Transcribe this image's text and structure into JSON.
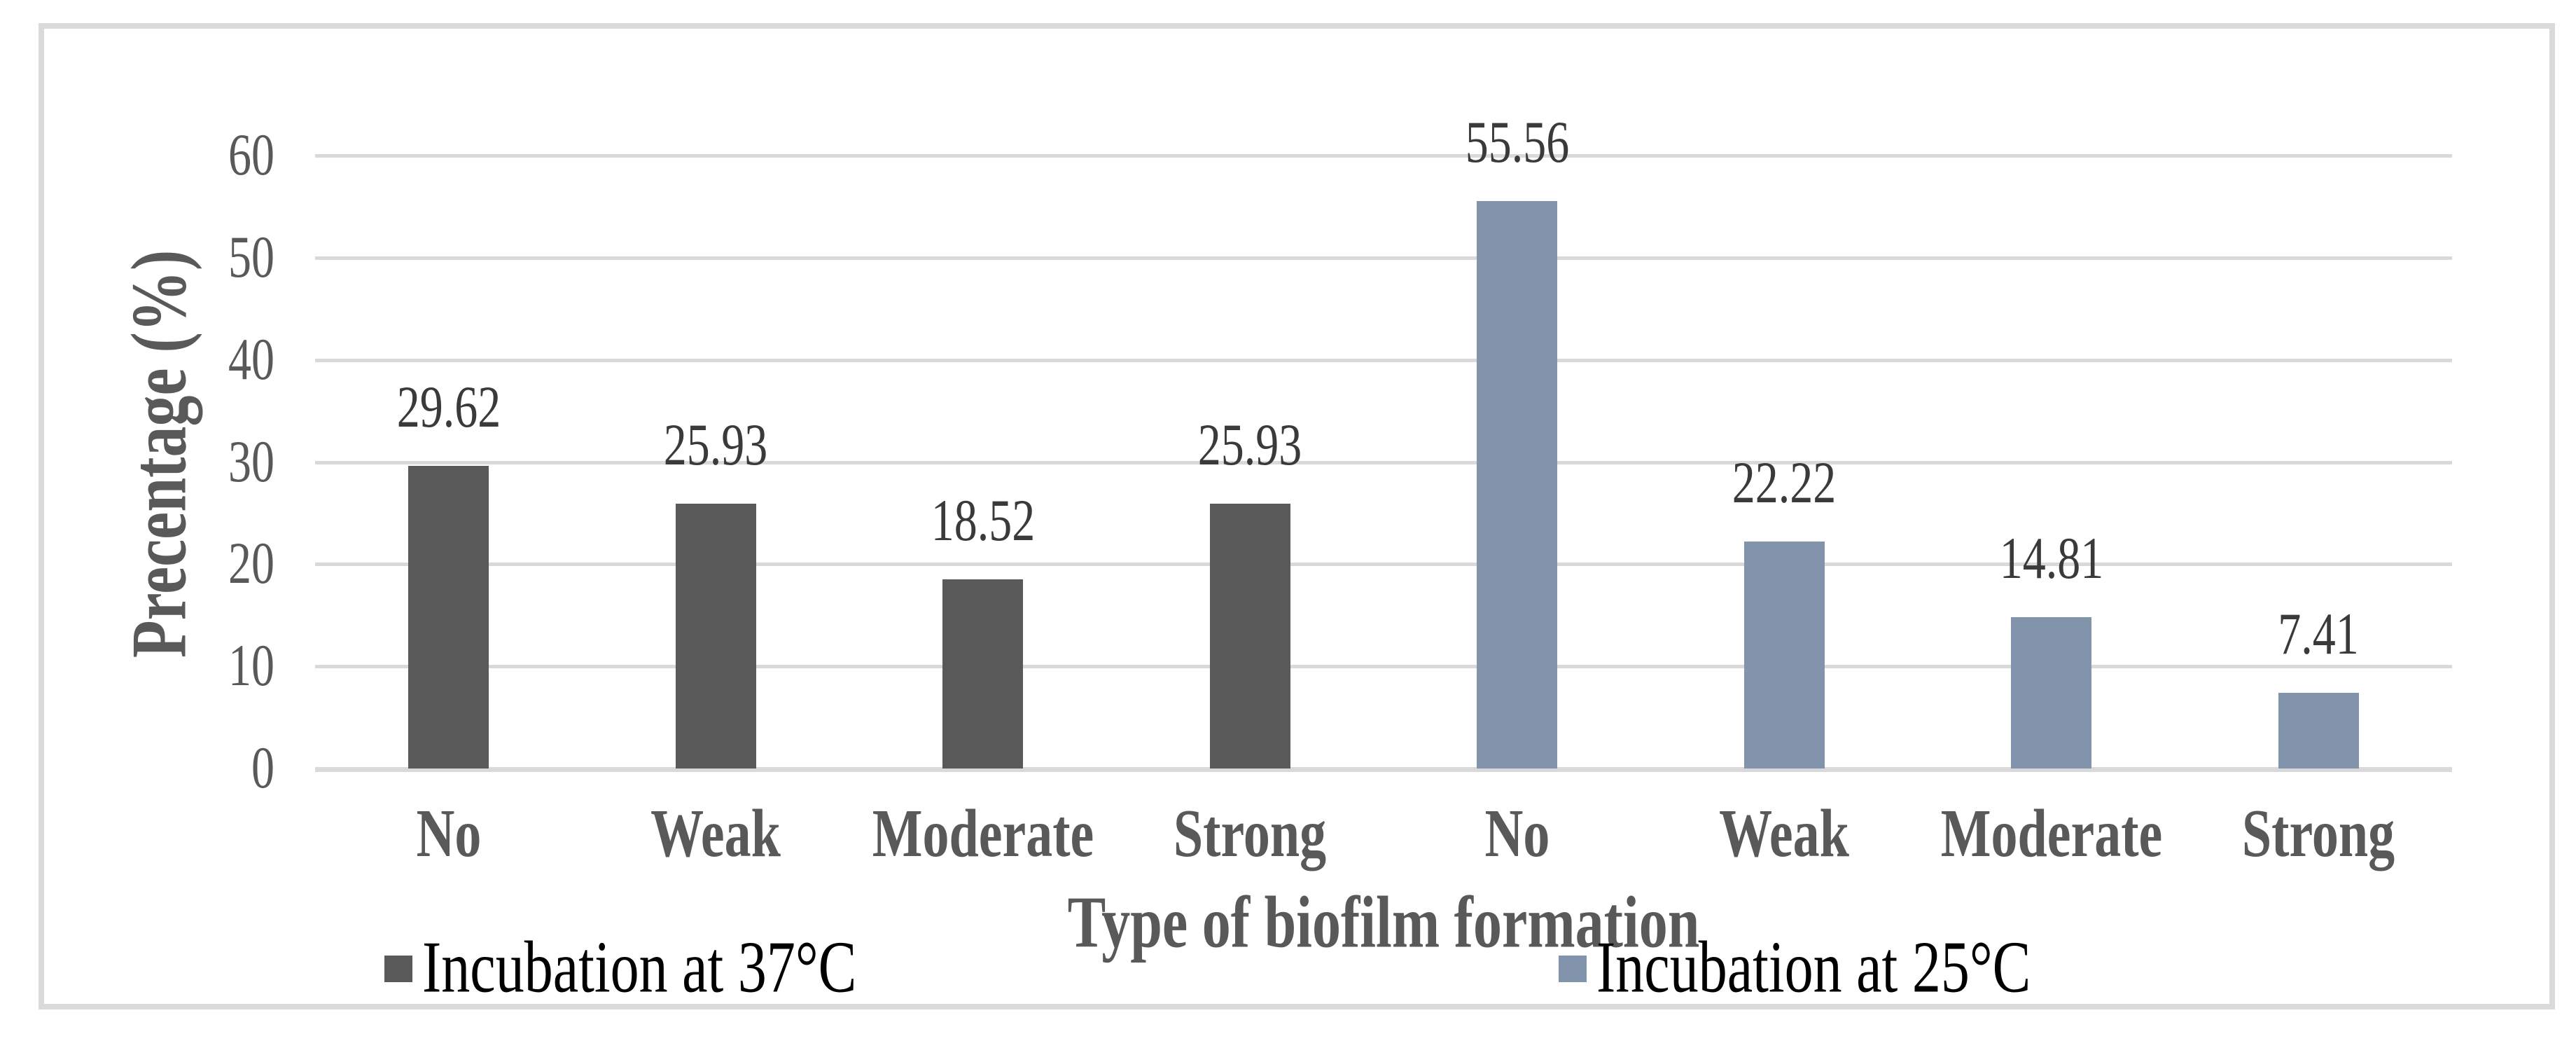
{
  "chart_data": {
    "type": "bar",
    "title": "",
    "xlabel": "Type of biofilm formation",
    "ylabel": "Precentage (%)",
    "ylim": [
      0,
      60
    ],
    "yticks": [
      0,
      10,
      20,
      30,
      40,
      50,
      60
    ],
    "grid": true,
    "legend_position": "bottom",
    "categories": [
      "No",
      "Weak",
      "Moderate",
      "Strong",
      "No",
      "Weak",
      "Moderate",
      "Strong"
    ],
    "series": [
      {
        "name": "Incubation at 37°C",
        "color": "#595959",
        "values": [
          29.62,
          25.93,
          18.52,
          25.93
        ]
      },
      {
        "name": "Incubation at 25°C",
        "color": "#8294AC",
        "values": [
          55.56,
          22.22,
          14.81,
          7.41
        ]
      }
    ],
    "bars": [
      {
        "category": "No",
        "series": "Incubation at 37°C",
        "value": 29.62,
        "label": "29.62"
      },
      {
        "category": "Weak",
        "series": "Incubation at 37°C",
        "value": 25.93,
        "label": "25.93"
      },
      {
        "category": "Moderate",
        "series": "Incubation at 37°C",
        "value": 18.52,
        "label": "18.52"
      },
      {
        "category": "Strong",
        "series": "Incubation at 37°C",
        "value": 25.93,
        "label": "25.93"
      },
      {
        "category": "No",
        "series": "Incubation at 25°C",
        "value": 55.56,
        "label": "55.56"
      },
      {
        "category": "Weak",
        "series": "Incubation at 25°C",
        "value": 22.22,
        "label": "22.22"
      },
      {
        "category": "Moderate",
        "series": "Incubation at 25°C",
        "value": 14.81,
        "label": "14.81"
      },
      {
        "category": "Strong",
        "series": "Incubation at 25°C",
        "value": 7.41,
        "label": "7.41"
      }
    ]
  },
  "colors": {
    "frame": "#dadada",
    "grid": "#d9d9d9",
    "axis-text": "#595959",
    "datalabel": "#3a3a3a",
    "legend-text": "#000000",
    "series-37": "#595959",
    "series-25": "#8294AC"
  }
}
